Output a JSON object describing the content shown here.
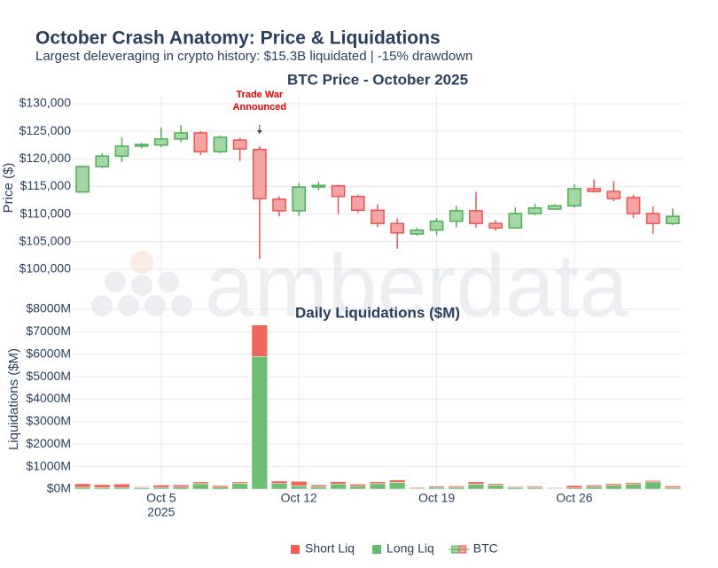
{
  "title": "October Crash Anatomy: Price & Liquidations",
  "subtitle": "Largest deleveraging in crypto history: $15.3B liquidated | -15% drawdown",
  "chart_data": [
    {
      "type": "candlestick",
      "title": "BTC Price - October 2025",
      "name": "BTC",
      "ylabel": "Price ($)",
      "watermark": "amberdata",
      "increasing_color": "#4caf50",
      "increasing_fill": "#a5d6a7",
      "decreasing_color": "#ef5350",
      "decreasing_fill": "#f4a3a3",
      "x": [
        "2025-10-01",
        "2025-10-02",
        "2025-10-03",
        "2025-10-04",
        "2025-10-05",
        "2025-10-06",
        "2025-10-07",
        "2025-10-08",
        "2025-10-09",
        "2025-10-10",
        "2025-10-11",
        "2025-10-12",
        "2025-10-13",
        "2025-10-14",
        "2025-10-15",
        "2025-10-16",
        "2025-10-17",
        "2025-10-18",
        "2025-10-19",
        "2025-10-20",
        "2025-10-21",
        "2025-10-22",
        "2025-10-23",
        "2025-10-24",
        "2025-10-25",
        "2025-10-26",
        "2025-10-27",
        "2025-10-28",
        "2025-10-29",
        "2025-10-30",
        "2025-10-31"
      ],
      "open": [
        114000,
        118600,
        120500,
        122300,
        122500,
        123600,
        124700,
        121300,
        123400,
        121700,
        112700,
        110600,
        114900,
        115100,
        113200,
        110700,
        108300,
        106400,
        107100,
        108700,
        110600,
        108300,
        107500,
        110100,
        110900,
        111500,
        114600,
        114100,
        113000,
        110100,
        108300
      ],
      "high": [
        118800,
        121000,
        123900,
        122900,
        125700,
        126100,
        125000,
        124200,
        123800,
        122300,
        113200,
        115600,
        115900,
        115300,
        113500,
        111700,
        109200,
        107500,
        109300,
        111500,
        114000,
        108900,
        111200,
        111900,
        111800,
        115400,
        116300,
        116000,
        113500,
        111400,
        111000
      ],
      "low": [
        113900,
        118300,
        119400,
        121900,
        122100,
        123000,
        120700,
        121000,
        119600,
        101900,
        109600,
        109600,
        114300,
        110000,
        110200,
        107600,
        103700,
        106100,
        106200,
        107600,
        107500,
        107000,
        107400,
        109800,
        110800,
        111200,
        113900,
        112300,
        109300,
        106400,
        108000
      ],
      "close": [
        118600,
        120500,
        122300,
        122600,
        123600,
        124700,
        121300,
        123900,
        121800,
        112800,
        110600,
        114900,
        115200,
        113200,
        110700,
        108300,
        106600,
        107100,
        108700,
        110600,
        108300,
        107500,
        110100,
        111100,
        111500,
        114600,
        114100,
        112800,
        110100,
        108300,
        109600
      ],
      "xlim": [
        "2025-09-30T12:00:00Z",
        "2025-10-31T12:00:00Z"
      ],
      "xticks": [
        "2025-10-05",
        "2025-10-12",
        "2025-10-19",
        "2025-10-26"
      ],
      "ylim": [
        98000,
        131500
      ],
      "yticks": [
        {
          "value": 100000,
          "label": "$100,000"
        },
        {
          "value": 105000,
          "label": "$105,000"
        },
        {
          "value": 110000,
          "label": "$110,000"
        },
        {
          "value": 115000,
          "label": "$115,000"
        },
        {
          "value": 120000,
          "label": "$120,000"
        },
        {
          "value": 125000,
          "label": "$125,000"
        },
        {
          "value": 130000,
          "label": "$130,000"
        }
      ],
      "grid": true,
      "annotation": {
        "text": [
          "Trade War",
          "Announced"
        ],
        "x": "2025-10-10",
        "color": "#e00000"
      }
    },
    {
      "type": "stacked_bar",
      "title": "Daily Liquidations ($M)",
      "ylabel": "Liquidations ($M)",
      "x": [
        "2025-10-01",
        "2025-10-02",
        "2025-10-03",
        "2025-10-04",
        "2025-10-05",
        "2025-10-06",
        "2025-10-07",
        "2025-10-08",
        "2025-10-09",
        "2025-10-10",
        "2025-10-11",
        "2025-10-12",
        "2025-10-13",
        "2025-10-14",
        "2025-10-15",
        "2025-10-16",
        "2025-10-17",
        "2025-10-18",
        "2025-10-19",
        "2025-10-20",
        "2025-10-21",
        "2025-10-22",
        "2025-10-23",
        "2025-10-24",
        "2025-10-25",
        "2025-10-26",
        "2025-10-27",
        "2025-10-28",
        "2025-10-29",
        "2025-10-30",
        "2025-10-31"
      ],
      "series": [
        {
          "name": "Short Liq",
          "color": "#ef5f55",
          "values": [
            160,
            140,
            160,
            40,
            110,
            100,
            80,
            70,
            60,
            1400,
            110,
            200,
            90,
            100,
            90,
            80,
            110,
            40,
            60,
            60,
            100,
            60,
            40,
            60,
            30,
            110,
            70,
            70,
            70,
            60,
            80
          ]
        },
        {
          "name": "Long Liq",
          "color": "#66bb6a",
          "values": [
            80,
            60,
            70,
            60,
            70,
            90,
            240,
            90,
            260,
            5900,
            250,
            150,
            100,
            230,
            130,
            240,
            300,
            40,
            70,
            80,
            220,
            180,
            70,
            60,
            30,
            50,
            110,
            170,
            210,
            320,
            60
          ]
        }
      ],
      "xlim": [
        "2025-09-30T12:00:00Z",
        "2025-10-31T12:00:00Z"
      ],
      "xticks": [
        {
          "value": "2025-10-05",
          "label": "Oct 5"
        },
        {
          "value": "2025-10-12",
          "label": "Oct 12"
        },
        {
          "value": "2025-10-19",
          "label": "Oct 19"
        },
        {
          "value": "2025-10-26",
          "label": "Oct 26"
        }
      ],
      "xtick_year": "2025",
      "ylim": [
        0,
        8000
      ],
      "yticks": [
        {
          "value": 0,
          "label": "$0M"
        },
        {
          "value": 1000,
          "label": "$1000M"
        },
        {
          "value": 2000,
          "label": "$2000M"
        },
        {
          "value": 3000,
          "label": "$3000M"
        },
        {
          "value": 4000,
          "label": "$4000M"
        },
        {
          "value": 5000,
          "label": "$5000M"
        },
        {
          "value": 6000,
          "label": "$6000M"
        },
        {
          "value": 7000,
          "label": "$7000M"
        },
        {
          "value": 8000,
          "label": "$8000M"
        }
      ],
      "grid": true
    }
  ]
}
